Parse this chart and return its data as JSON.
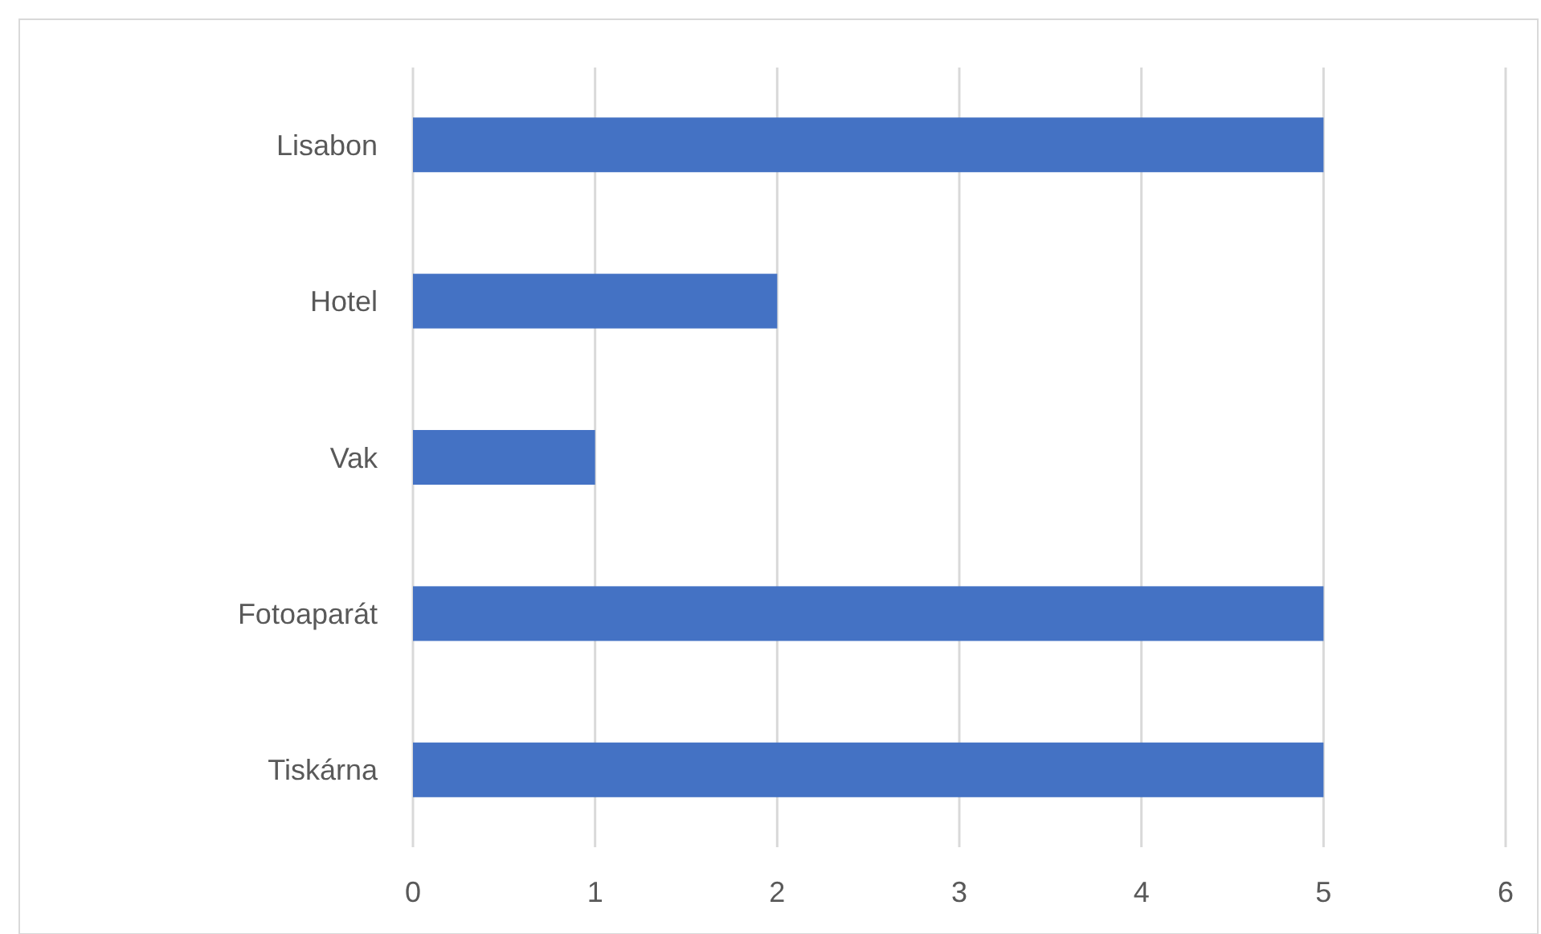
{
  "chart_data": {
    "type": "bar",
    "orientation": "horizontal",
    "categories": [
      "Lisabon",
      "Hotel",
      "Vak",
      "Fotoaparát",
      "Tiskárna"
    ],
    "values": [
      5,
      2,
      1,
      5,
      5
    ],
    "color": "#4472c4",
    "xlim": [
      0,
      6
    ],
    "xticks": [
      0,
      1,
      2,
      3,
      4,
      5,
      6
    ],
    "grid": "x"
  }
}
